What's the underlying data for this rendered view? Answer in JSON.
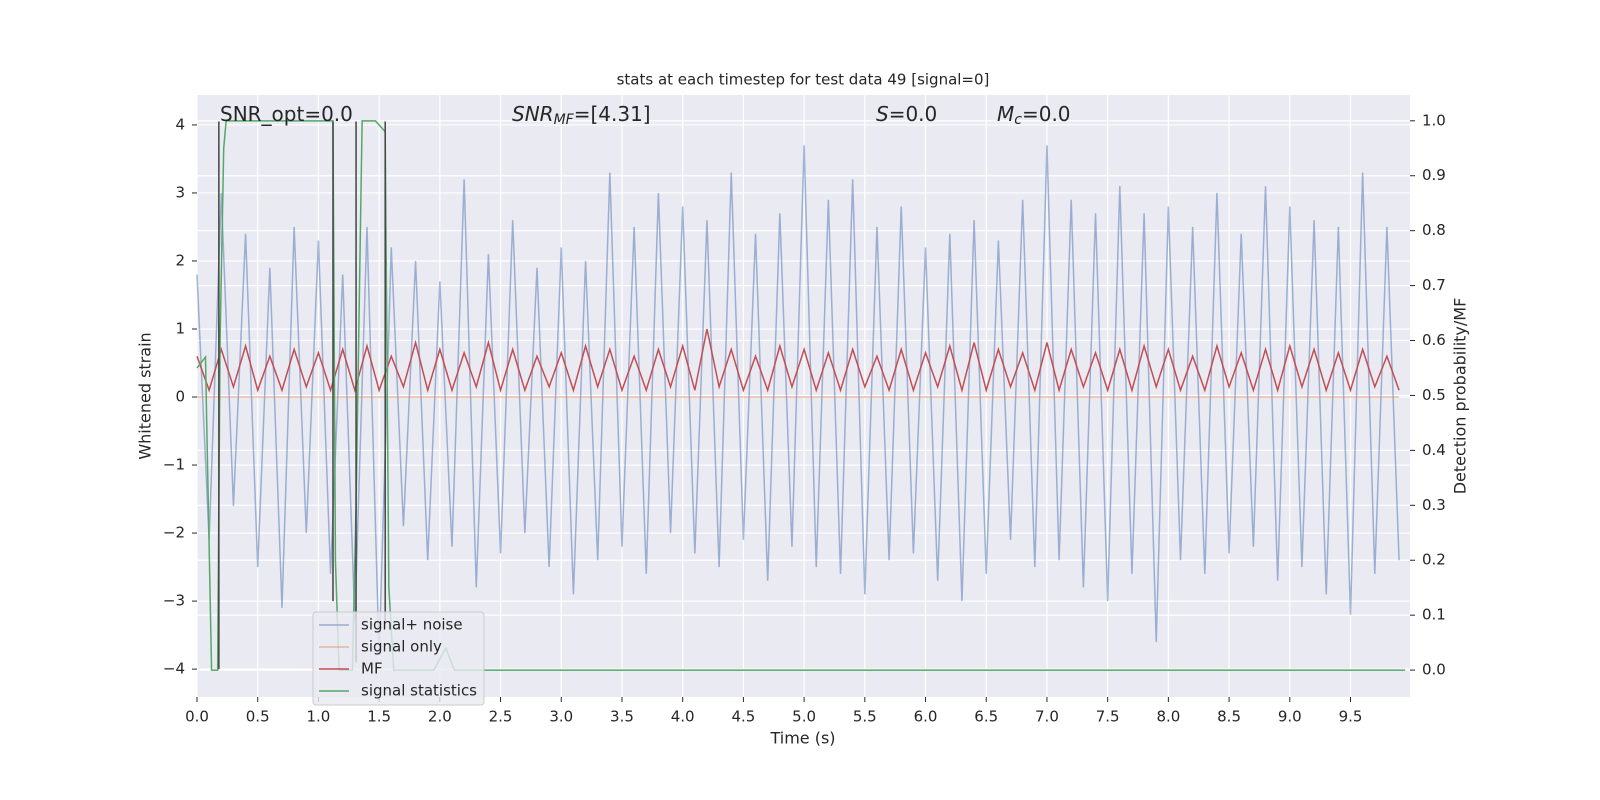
{
  "chart_data": {
    "type": "line",
    "title": "stats at each timestep for test data 49 [signal=0]",
    "xlabel": "Time (s)",
    "ylabel": "Whitened strain",
    "y2label": "Detection probability/MF",
    "annotations": [
      {
        "main": "SNR_opt=0.0"
      },
      {
        "main": "SNR",
        "sub": "MF",
        "rest": "=[4.31]"
      },
      {
        "main": "S",
        "rest": "=0.0"
      },
      {
        "main": "M",
        "sub": "c",
        "rest": "=0.0"
      }
    ],
    "xlim": [
      0,
      9.99
    ],
    "ylim": [
      -4.41,
      4.44
    ],
    "y2lim": [
      -0.049,
      1.047
    ],
    "xticks": [
      {
        "value": 0,
        "label": "0.0"
      },
      {
        "value": 0.5,
        "label": "0.5"
      },
      {
        "value": 1,
        "label": "1.0"
      },
      {
        "value": 1.5,
        "label": "1.5"
      },
      {
        "value": 2,
        "label": "2.0"
      },
      {
        "value": 2.5,
        "label": "2.5"
      },
      {
        "value": 3,
        "label": "3.0"
      },
      {
        "value": 3.5,
        "label": "3.5"
      },
      {
        "value": 4,
        "label": "4.0"
      },
      {
        "value": 4.5,
        "label": "4.5"
      },
      {
        "value": 5,
        "label": "5.0"
      },
      {
        "value": 5.5,
        "label": "5.5"
      },
      {
        "value": 6,
        "label": "6.0"
      },
      {
        "value": 6.5,
        "label": "6.5"
      },
      {
        "value": 7,
        "label": "7.0"
      },
      {
        "value": 7.5,
        "label": "7.5"
      },
      {
        "value": 8,
        "label": "8.0"
      },
      {
        "value": 8.5,
        "label": "8.5"
      },
      {
        "value": 9,
        "label": "9.0"
      },
      {
        "value": 9.5,
        "label": "9.5"
      }
    ],
    "yticks": [
      {
        "value": -4,
        "label": "−4"
      },
      {
        "value": -3,
        "label": "−3"
      },
      {
        "value": -2,
        "label": "−2"
      },
      {
        "value": -1,
        "label": "−1"
      },
      0,
      1,
      2,
      3,
      4
    ],
    "y2ticks": [
      {
        "value": 0,
        "label": "0.0"
      },
      {
        "value": 0.1,
        "label": "0.1"
      },
      {
        "value": 0.2,
        "label": "0.2"
      },
      {
        "value": 0.3,
        "label": "0.3"
      },
      {
        "value": 0.4,
        "label": "0.4"
      },
      {
        "value": 0.5,
        "label": "0.5"
      },
      {
        "value": 0.6,
        "label": "0.6"
      },
      {
        "value": 0.7,
        "label": "0.7"
      },
      {
        "value": 0.8,
        "label": "0.8"
      },
      {
        "value": 0.9,
        "label": "0.9"
      },
      {
        "value": 1,
        "label": "1.0"
      }
    ],
    "grid": true,
    "legend": "lower left",
    "x": [
      0.0,
      0.1,
      0.2,
      0.3,
      0.4,
      0.5,
      0.6,
      0.7,
      0.8,
      0.9,
      1.0,
      1.1,
      1.2,
      1.3,
      1.4,
      1.5,
      1.6,
      1.7,
      1.8,
      1.9,
      2.0,
      2.1,
      2.2,
      2.3,
      2.4,
      2.5,
      2.6,
      2.7,
      2.8,
      2.9,
      3.0,
      3.1,
      3.2,
      3.3,
      3.4,
      3.5,
      3.6,
      3.7,
      3.8,
      3.9,
      4.0,
      4.1,
      4.2,
      4.3,
      4.4,
      4.5,
      4.6,
      4.7,
      4.8,
      4.9,
      5.0,
      5.1,
      5.2,
      5.3,
      5.4,
      5.5,
      5.6,
      5.7,
      5.8,
      5.9,
      6.0,
      6.1,
      6.2,
      6.3,
      6.4,
      6.5,
      6.6,
      6.7,
      6.8,
      6.9,
      7.0,
      7.1,
      7.2,
      7.3,
      7.4,
      7.5,
      7.6,
      7.7,
      7.8,
      7.9,
      8.0,
      8.1,
      8.2,
      8.3,
      8.4,
      8.5,
      8.6,
      8.7,
      8.8,
      8.9,
      9.0,
      9.1,
      9.2,
      9.3,
      9.4,
      9.5,
      9.6,
      9.7,
      9.8,
      9.9
    ],
    "series": [
      {
        "name": "signal+ noise",
        "color": "#4c72b0",
        "opacity": 0.5,
        "values": [
          1.8,
          -2.1,
          3.0,
          -1.6,
          2.4,
          -2.5,
          1.9,
          -3.1,
          2.5,
          -2.0,
          2.3,
          -2.6,
          1.8,
          -3.3,
          2.5,
          -3.8,
          2.2,
          -1.9,
          2.0,
          -2.4,
          1.7,
          -2.2,
          3.2,
          -2.8,
          2.1,
          -2.3,
          2.6,
          -2.0,
          1.9,
          -2.5,
          2.2,
          -2.9,
          2.0,
          -2.4,
          3.3,
          -2.2,
          2.5,
          -2.6,
          3.0,
          -2.0,
          2.8,
          -2.3,
          2.6,
          -2.5,
          3.3,
          -2.1,
          2.4,
          -2.7,
          2.7,
          -2.2,
          3.7,
          -2.5,
          2.9,
          -2.6,
          3.2,
          -2.9,
          2.5,
          -2.4,
          2.8,
          -2.3,
          2.2,
          -2.7,
          2.4,
          -3.0,
          2.6,
          -2.6,
          2.3,
          -2.1,
          2.9,
          -2.5,
          3.7,
          -2.4,
          2.9,
          -2.8,
          2.7,
          -3.0,
          3.1,
          -2.6,
          2.7,
          -3.6,
          2.8,
          -2.4,
          2.5,
          -2.6,
          3.0,
          -2.3,
          2.4,
          -2.2,
          3.1,
          -2.7,
          2.8,
          -2.5,
          2.6,
          -2.9,
          2.5,
          -3.2,
          3.3,
          -2.6,
          2.5,
          -2.4
        ]
      },
      {
        "name": "signal only",
        "color": "#dd8452",
        "opacity": 0.5,
        "values": [
          0,
          0,
          0,
          0,
          0,
          0,
          0,
          0,
          0,
          0,
          0,
          0,
          0,
          0,
          0,
          0,
          0,
          0,
          0,
          0,
          0,
          0,
          0,
          0,
          0,
          0,
          0,
          0,
          0,
          0,
          0,
          0,
          0,
          0,
          0,
          0,
          0,
          0,
          0,
          0,
          0,
          0,
          0,
          0,
          0,
          0,
          0,
          0,
          0,
          0,
          0,
          0,
          0,
          0,
          0,
          0,
          0,
          0,
          0,
          0,
          0,
          0,
          0,
          0,
          0,
          0,
          0,
          0,
          0,
          0,
          0,
          0,
          0,
          0,
          0,
          0,
          0,
          0,
          0,
          0,
          0,
          0,
          0,
          0,
          0,
          0,
          0,
          0,
          0,
          0,
          0,
          0,
          0,
          0,
          0,
          0,
          0,
          0,
          0,
          0
        ]
      },
      {
        "name": "MF",
        "color": "#c44e52",
        "opacity": 1,
        "values": [
          0.6,
          0.1,
          0.7,
          0.15,
          0.75,
          0.1,
          0.6,
          0.1,
          0.7,
          0.15,
          0.65,
          0.1,
          0.7,
          0.1,
          0.75,
          0.1,
          0.6,
          0.15,
          0.8,
          0.1,
          0.7,
          0.1,
          0.65,
          0.15,
          0.8,
          0.1,
          0.7,
          0.1,
          0.6,
          0.15,
          0.65,
          0.1,
          0.75,
          0.15,
          0.7,
          0.1,
          0.6,
          0.1,
          0.7,
          0.15,
          0.75,
          0.1,
          1.0,
          0.15,
          0.7,
          0.1,
          0.6,
          0.1,
          0.75,
          0.15,
          0.7,
          0.1,
          0.65,
          0.1,
          0.7,
          0.15,
          0.6,
          0.1,
          0.7,
          0.1,
          0.65,
          0.15,
          0.75,
          0.1,
          0.8,
          0.1,
          0.7,
          0.15,
          0.65,
          0.1,
          0.8,
          0.1,
          0.7,
          0.15,
          0.65,
          0.1,
          0.7,
          0.1,
          0.75,
          0.15,
          0.7,
          0.1,
          0.6,
          0.1,
          0.75,
          0.15,
          0.65,
          0.1,
          0.7,
          0.1,
          0.75,
          0.15,
          0.7,
          0.1,
          0.65,
          0.1,
          0.7,
          0.15,
          0.6,
          0.1
        ]
      },
      {
        "name": "signal statistics",
        "color": "#55a868",
        "opacity": 1,
        "axis": "y2",
        "x": [
          0.0,
          0.07,
          0.08,
          0.12,
          0.17,
          0.19,
          0.22,
          0.24,
          1.12,
          1.14,
          1.17,
          1.28,
          1.31,
          1.36,
          1.47,
          1.55,
          1.58,
          1.62,
          1.95,
          2.05,
          2.12,
          9.95
        ],
        "values": [
          0.55,
          0.57,
          0.45,
          0.0,
          0.0,
          0.6,
          0.95,
          1.0,
          1.0,
          0.2,
          0.0,
          0.0,
          0.3,
          1.0,
          1.0,
          0.98,
          0.15,
          0.0,
          0.0,
          0.04,
          0.0,
          0.0
        ]
      }
    ],
    "vlines": {
      "color": "#444444",
      "x": [
        0.18,
        1.12,
        1.31,
        1.55
      ],
      "ymin": [
        -4,
        -3,
        -3.9,
        -3.3
      ],
      "ymax": [
        4.05,
        4.05,
        4.05,
        4.05
      ]
    }
  }
}
